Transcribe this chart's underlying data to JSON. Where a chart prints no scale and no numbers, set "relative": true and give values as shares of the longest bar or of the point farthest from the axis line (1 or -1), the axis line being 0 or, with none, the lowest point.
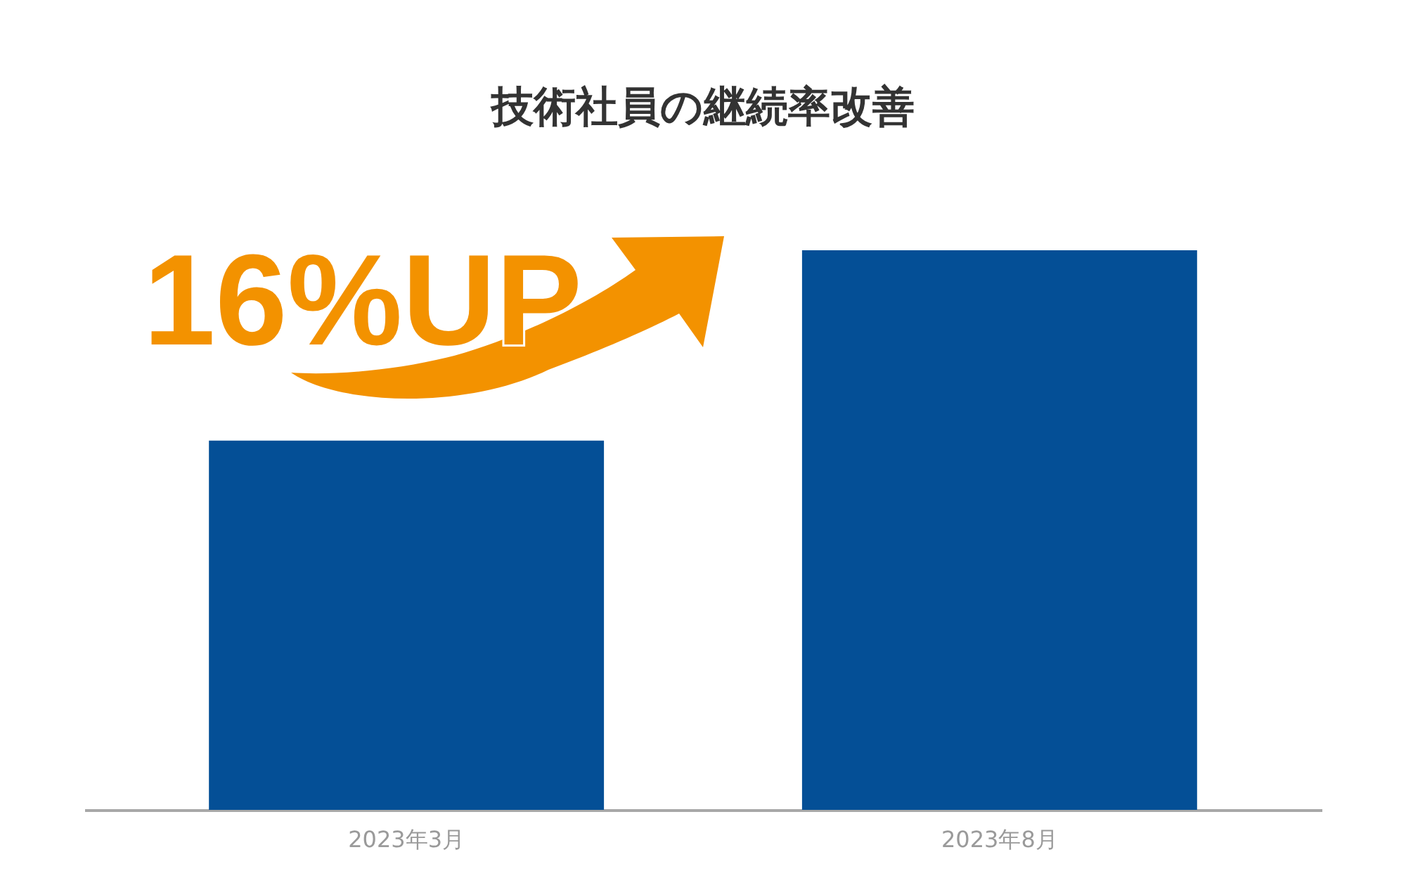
{
  "chart_data": {
    "type": "bar",
    "title": "技術社員の継続率改善",
    "categories": [
      "2023年3月",
      "2023年8月"
    ],
    "values": [
      0.66,
      1
    ],
    "color": "#044f96",
    "relative": true,
    "annotations": [
      "16%UP"
    ]
  }
}
